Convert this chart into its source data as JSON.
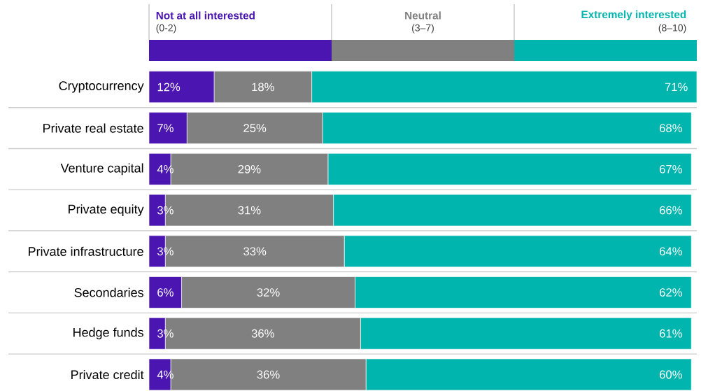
{
  "chart_data": {
    "type": "bar",
    "orientation": "horizontal",
    "stacked": true,
    "legend": "top",
    "categories": [
      "Cryptocurrency",
      "Private real estate",
      "Venture capital",
      "Private equity",
      "Private infrastructure",
      "Secondaries",
      "Hedge funds",
      "Private credit"
    ],
    "series": [
      {
        "name": "Not at all interested",
        "color": "#4a15b0",
        "values": [
          12,
          7,
          4,
          3,
          3,
          6,
          3,
          4
        ],
        "value_labels": [
          "12%",
          "7%",
          "4%",
          "3%",
          "3%",
          "6%",
          "3%",
          "4%"
        ]
      },
      {
        "name": "Neutral",
        "color": "#808080",
        "values": [
          18,
          25,
          29,
          31,
          33,
          32,
          36,
          36
        ],
        "value_labels": [
          "18%",
          "25%",
          "29%",
          "31%",
          "33%",
          "32%",
          "36%",
          "36%"
        ]
      },
      {
        "name": "Extremely interested",
        "color": "#00b5ad",
        "values": [
          71,
          68,
          67,
          66,
          64,
          62,
          61,
          60
        ],
        "value_labels": [
          "71%",
          "68%",
          "67%",
          "66%",
          "64%",
          "62%",
          "61%",
          "60%"
        ]
      }
    ],
    "annotations": [
      "(0-2)",
      "(3–7)",
      "(8–10)"
    ]
  }
}
